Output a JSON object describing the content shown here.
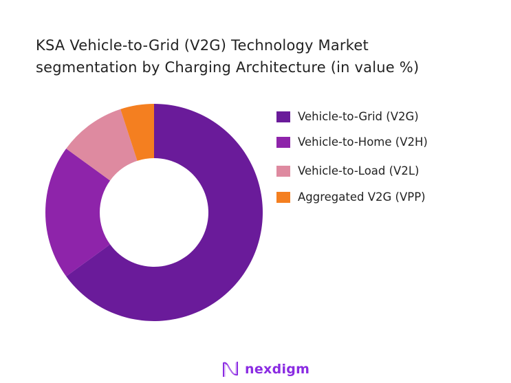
{
  "chart_data": {
    "type": "donut",
    "title": "KSA Vehicle-to-Grid (V2G) Technology Market segmentation by Charging Architecture (in value %)",
    "title_lines": [
      "KSA Vehicle-to-Grid (V2G) Technology Market",
      "segmentation by Charging Architecture (in value %)"
    ],
    "categories": [
      "Vehicle-to-Grid (V2G)",
      "Vehicle-to-Home (V2H)",
      "Vehicle-to-Load (V2L)",
      "Aggregated V2G (VPP)"
    ],
    "values": [
      65,
      20,
      10,
      5
    ],
    "colors": [
      "#6a1b9a",
      "#8e24aa",
      "#de8aa0",
      "#f47f20"
    ],
    "legend_position": "right"
  },
  "logo": {
    "text": "nexdigm"
  }
}
